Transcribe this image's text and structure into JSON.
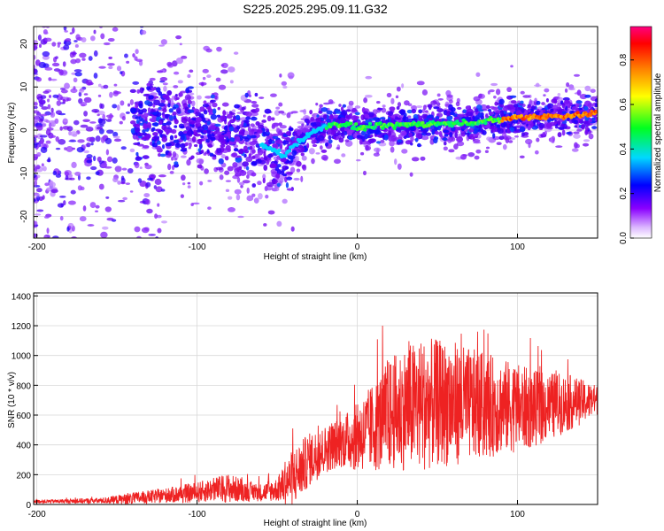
{
  "chart_data": [
    {
      "type": "heatmap",
      "title": "S225.2025.295.09.11.G32",
      "xlabel": "Height of straight line (km)",
      "ylabel": "Frequency (Hz)",
      "xlim": [
        -202,
        150
      ],
      "ylim": [
        -25,
        24
      ],
      "xticks": [
        -200,
        -100,
        0,
        100
      ],
      "xtick_labels": [
        "-200",
        "-100",
        "0",
        "100"
      ],
      "yticks": [
        20,
        10,
        0,
        -10,
        -20
      ],
      "ytick_labels": [
        "20",
        "10",
        "0",
        "-10",
        "-20"
      ],
      "colorbar": {
        "label": "Normalized spectral amplitude",
        "range": [
          0,
          0.95
        ],
        "ticks": [
          0.0,
          0.2,
          0.4,
          0.6,
          0.8
        ],
        "tick_labels": [
          "0.0",
          "0.2",
          "0.4",
          "0.6",
          "0.8"
        ],
        "colormap": [
          "#ffffff",
          "#8a00ff",
          "#0000ff",
          "#00d8ff",
          "#00ff20",
          "#ffff00",
          "#ff8000",
          "#ff0000"
        ]
      },
      "ridge": {
        "x": [
          -130,
          -110,
          -90,
          -75,
          -60,
          -50,
          -45,
          -40,
          -30,
          -20,
          -10,
          0,
          20,
          40,
          60,
          80,
          100,
          120,
          140,
          150
        ],
        "frequency": [
          2,
          1.5,
          0,
          -2,
          -3.5,
          -5,
          -6,
          -3.5,
          -1,
          1,
          1.5,
          0.5,
          1,
          1.5,
          1.5,
          2,
          3,
          3.2,
          3.5,
          4
        ]
      }
    },
    {
      "type": "line",
      "title": "",
      "xlabel": "Height of straight line (km)",
      "ylabel": "SNR (10 * v/v)",
      "xlim": [
        -202,
        150
      ],
      "ylim": [
        0,
        1420
      ],
      "xticks": [
        -200,
        -100,
        0,
        100
      ],
      "xtick_labels": [
        "-200",
        "-100",
        "0",
        "100"
      ],
      "yticks": [
        0,
        200,
        400,
        600,
        800,
        1000,
        1200,
        1400
      ],
      "ytick_labels": [
        "0",
        "200",
        "400",
        "600",
        "800",
        "1000",
        "1200",
        "1400"
      ],
      "series": [
        {
          "name": "SNR",
          "color": "#ee2222",
          "envelope_x": [
            -202,
            -180,
            -160,
            -140,
            -120,
            -100,
            -90,
            -80,
            -70,
            -60,
            -50,
            -40,
            -30,
            -20,
            -10,
            0,
            10,
            20,
            30,
            40,
            50,
            60,
            70,
            80,
            90,
            100,
            110,
            120,
            130,
            140,
            150
          ],
          "envelope_mean": [
            20,
            22,
            25,
            40,
            60,
            80,
            100,
            110,
            90,
            80,
            100,
            180,
            300,
            370,
            420,
            450,
            520,
            600,
            650,
            670,
            680,
            680,
            670,
            660,
            660,
            650,
            640,
            660,
            680,
            690,
            700
          ],
          "envelope_amp": [
            12,
            15,
            20,
            40,
            50,
            70,
            80,
            100,
            70,
            60,
            80,
            200,
            180,
            160,
            170,
            230,
            300,
            380,
            420,
            450,
            430,
            420,
            380,
            360,
            320,
            300,
            260,
            230,
            200,
            150,
            100
          ]
        }
      ]
    }
  ]
}
